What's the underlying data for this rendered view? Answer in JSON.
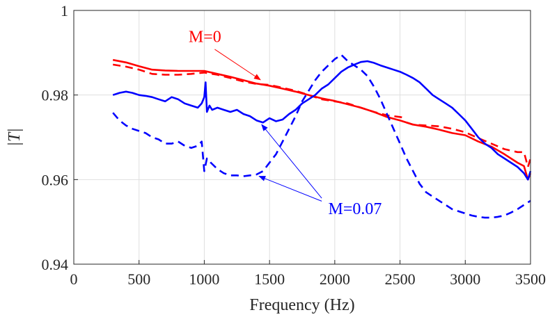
{
  "chart_data": {
    "type": "line",
    "title": "",
    "xlabel": "Frequency (Hz)",
    "ylabel": "|T|",
    "xlim": [
      0,
      3500
    ],
    "ylim": [
      0.94,
      1.0
    ],
    "xticks": [
      0,
      500,
      1000,
      1500,
      2000,
      2500,
      3000,
      3500
    ],
    "yticks": [
      0.94,
      0.96,
      0.98,
      1.0
    ],
    "xtick_labels": [
      "0",
      "500",
      "1000",
      "1500",
      "2000",
      "2500",
      "3000",
      "3500"
    ],
    "ytick_labels": [
      "0.94",
      "0.96",
      "0.98",
      "1"
    ],
    "grid": true,
    "colors": {
      "red": "#ff0000",
      "blue": "#0000ff"
    },
    "series": [
      {
        "color": "#ff0000",
        "dash": "solid",
        "x": [
          300,
          400,
          500,
          600,
          700,
          800,
          900,
          1000,
          1100,
          1200,
          1300,
          1400,
          1500,
          1600,
          1700,
          1800,
          1900,
          2000,
          2100,
          2200,
          2300,
          2400,
          2500,
          2600,
          2700,
          2800,
          2900,
          3000,
          3100,
          3200,
          3300,
          3400,
          3450,
          3480,
          3500
        ],
        "y": [
          0.9883,
          0.9877,
          0.9868,
          0.986,
          0.9858,
          0.9857,
          0.9857,
          0.9857,
          0.985,
          0.9843,
          0.9835,
          0.9827,
          0.9822,
          0.9815,
          0.9808,
          0.98,
          0.9792,
          0.9786,
          0.9778,
          0.977,
          0.976,
          0.9748,
          0.974,
          0.973,
          0.9725,
          0.9718,
          0.971,
          0.9705,
          0.969,
          0.9678,
          0.966,
          0.964,
          0.9632,
          0.96,
          0.9615
        ]
      },
      {
        "color": "#ff0000",
        "dash": "dashed",
        "x": [
          300,
          400,
          500,
          600,
          700,
          800,
          900,
          1000,
          1100,
          1200,
          1300,
          1400,
          1500,
          1600,
          1700,
          1800,
          1900,
          2000,
          2100,
          2200,
          2300,
          2400,
          2500,
          2550
        ],
        "y": [
          0.9872,
          0.9867,
          0.986,
          0.985,
          0.9848,
          0.9848,
          0.985,
          0.9853,
          0.9848,
          0.984,
          0.9832,
          0.9826,
          0.9824,
          0.9817,
          0.981,
          0.98,
          0.979,
          0.9785,
          0.978,
          0.977,
          0.976,
          0.9752,
          0.9748,
          0.9745
        ]
      },
      {
        "color": "#ff0000",
        "dash": "dashed",
        "x": [
          2550,
          2600,
          2700,
          2800,
          2900,
          3000,
          3100,
          3200,
          3300,
          3400,
          3450,
          3480,
          3500
        ],
        "y": [
          0.9735,
          0.973,
          0.9728,
          0.9726,
          0.972,
          0.9712,
          0.9698,
          0.9685,
          0.9672,
          0.9665,
          0.9665,
          0.963,
          0.965
        ]
      },
      {
        "color": "#0000ff",
        "dash": "solid",
        "x": [
          300,
          350,
          400,
          450,
          500,
          550,
          600,
          650,
          700,
          750,
          800,
          850,
          900,
          950,
          980,
          1000,
          1010,
          1020,
          1040,
          1060,
          1100,
          1150,
          1200,
          1250,
          1300,
          1350,
          1400,
          1450,
          1500,
          1550,
          1600,
          1650,
          1700,
          1750,
          1800,
          1850,
          1900,
          1950,
          2000,
          2050,
          2100,
          2150,
          2200,
          2250,
          2300,
          2350,
          2400,
          2450,
          2500,
          2550,
          2600,
          2650,
          2700,
          2750,
          2800,
          2850,
          2900,
          2950,
          3000,
          3050,
          3100,
          3150,
          3200,
          3250,
          3300,
          3350,
          3400,
          3450,
          3480,
          3500
        ],
        "y": [
          0.98,
          0.9805,
          0.9808,
          0.9805,
          0.98,
          0.9798,
          0.9795,
          0.979,
          0.9785,
          0.9795,
          0.979,
          0.978,
          0.9775,
          0.977,
          0.978,
          0.9795,
          0.983,
          0.976,
          0.9775,
          0.9765,
          0.977,
          0.9765,
          0.976,
          0.9765,
          0.9755,
          0.975,
          0.974,
          0.9735,
          0.9745,
          0.9738,
          0.9742,
          0.9755,
          0.9765,
          0.978,
          0.979,
          0.98,
          0.9815,
          0.9825,
          0.984,
          0.9855,
          0.9865,
          0.9872,
          0.9878,
          0.988,
          0.9876,
          0.987,
          0.9865,
          0.986,
          0.9855,
          0.9848,
          0.984,
          0.983,
          0.9815,
          0.98,
          0.979,
          0.978,
          0.977,
          0.9755,
          0.974,
          0.972,
          0.97,
          0.9685,
          0.9675,
          0.966,
          0.965,
          0.964,
          0.963,
          0.9615,
          0.96,
          0.962
        ]
      },
      {
        "color": "#0000ff",
        "dash": "dashed",
        "x": [
          300,
          350,
          400,
          450,
          500,
          550,
          600,
          650,
          700,
          750,
          800,
          850,
          900,
          950,
          980,
          1000,
          1020,
          1050,
          1100,
          1150,
          1200,
          1250,
          1300,
          1350,
          1400,
          1450,
          1500,
          1550,
          1600,
          1650,
          1700,
          1750,
          1800,
          1850,
          1900,
          1950,
          2000,
          2050,
          2100,
          2150,
          2200,
          2250,
          2300,
          2350,
          2400,
          2450,
          2500,
          2550,
          2600,
          2650,
          2700,
          2750,
          2800,
          2850,
          2900,
          2950,
          3000,
          3050,
          3100,
          3150,
          3200,
          3250,
          3300,
          3350,
          3400,
          3450,
          3500
        ],
        "y": [
          0.9758,
          0.974,
          0.9728,
          0.972,
          0.9715,
          0.971,
          0.97,
          0.9695,
          0.9685,
          0.9685,
          0.969,
          0.968,
          0.9675,
          0.968,
          0.969,
          0.962,
          0.965,
          0.964,
          0.9625,
          0.9615,
          0.961,
          0.961,
          0.9608,
          0.961,
          0.9612,
          0.962,
          0.964,
          0.966,
          0.969,
          0.972,
          0.975,
          0.9785,
          0.981,
          0.9835,
          0.9855,
          0.987,
          0.9885,
          0.9895,
          0.988,
          0.987,
          0.986,
          0.9845,
          0.982,
          0.979,
          0.9755,
          0.972,
          0.9685,
          0.965,
          0.962,
          0.959,
          0.957,
          0.956,
          0.955,
          0.954,
          0.953,
          0.9525,
          0.952,
          0.9515,
          0.9512,
          0.951,
          0.951,
          0.9512,
          0.9515,
          0.9522,
          0.953,
          0.954,
          0.955
        ]
      }
    ],
    "annotations": [
      {
        "text": "M=0",
        "color": "#ff0000",
        "x": 880,
        "y": 0.9925,
        "arrows": [
          {
            "from": [
              1080,
              0.9908
            ],
            "to": [
              1430,
              0.9836
            ]
          }
        ]
      },
      {
        "text": "M=0.07",
        "color": "#0000ff",
        "x": 1950,
        "y": 0.9518,
        "arrows": [
          {
            "from": [
              1900,
              0.9556
            ],
            "to": [
              1440,
              0.973
            ]
          },
          {
            "from": [
              1900,
              0.9549
            ],
            "to": [
              1420,
              0.9608
            ]
          }
        ]
      }
    ]
  }
}
